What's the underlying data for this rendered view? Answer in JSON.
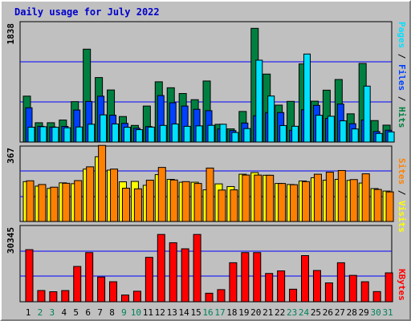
{
  "chart_data": [
    {
      "type": "bar",
      "title": "Daily usage for July 2022",
      "categories": [
        "1",
        "2",
        "3",
        "4",
        "5",
        "6",
        "7",
        "8",
        "9",
        "10",
        "11",
        "12",
        "13",
        "14",
        "15",
        "16",
        "17",
        "18",
        "19",
        "20",
        "21",
        "22",
        "23",
        "24",
        "25",
        "26",
        "27",
        "28",
        "29",
        "30",
        "31"
      ],
      "weekend_days": [
        "2",
        "3",
        "9",
        "10",
        "16",
        "17",
        "23",
        "24",
        "30",
        "31"
      ],
      "ymax_label": "1838",
      "ylim": [
        0,
        1838
      ],
      "legend": [
        "Pages",
        "Files",
        "Hits"
      ],
      "series": [
        {
          "name": "Hits",
          "color": "#008040",
          "values": [
            701,
            295,
            295,
            336,
            617,
            1418,
            985,
            795,
            390,
            254,
            550,
            920,
            829,
            741,
            647,
            932,
            271,
            201,
            467,
            1736,
            1038,
            564,
            621,
            1193,
            624,
            792,
            955,
            431,
            1200,
            328,
            258
          ]
        },
        {
          "name": "Files",
          "color": "#0040FF",
          "values": [
            523,
            240,
            230,
            239,
            489,
            620,
            700,
            410,
            285,
            210,
            236,
            710,
            600,
            550,
            500,
            479,
            200,
            175,
            290,
            402,
            450,
            450,
            180,
            493,
            560,
            360,
            580,
            280,
            336,
            160,
            180
          ]
        },
        {
          "name": "Pages",
          "color": "#00E0FF",
          "values": [
            227,
            234,
            225,
            218,
            230,
            272,
            415,
            276,
            226,
            189,
            228,
            254,
            276,
            240,
            247,
            255,
            272,
            146,
            206,
            1250,
            703,
            252,
            241,
            1344,
            409,
            394,
            324,
            200,
            854,
            131,
            155
          ]
        }
      ]
    },
    {
      "type": "bar",
      "ymax_label": "367",
      "ylim": [
        0,
        367
      ],
      "legend": [
        "Sites",
        "Visits"
      ],
      "series": [
        {
          "name": "Visits",
          "color": "#FFFF00",
          "values": [
            194,
            172,
            161,
            188,
            184,
            255,
            315,
            250,
            193,
            195,
            176,
            228,
            205,
            191,
            191,
            154,
            183,
            170,
            230,
            238,
            225,
            185,
            180,
            197,
            213,
            201,
            205,
            200,
            187,
            160,
            148
          ]
        },
        {
          "name": "Sites",
          "color": "#FF8000",
          "values": [
            198,
            180,
            167,
            186,
            199,
            266,
            370,
            255,
            162,
            159,
            201,
            263,
            202,
            194,
            185,
            260,
            153,
            154,
            226,
            226,
            225,
            185,
            179,
            194,
            230,
            240,
            248,
            204,
            232,
            156,
            144
          ]
        }
      ]
    },
    {
      "type": "bar",
      "ymax_label": "30345",
      "ylim": [
        0,
        30345
      ],
      "legend": [
        "KBytes"
      ],
      "series": [
        {
          "name": "KBytes",
          "color": "#FF0000",
          "values": [
            20733,
            4466,
            3986,
            4450,
            14046,
            19565,
            9838,
            7963,
            2678,
            4188,
            17679,
            26788,
            23489,
            21074,
            26788,
            3400,
            4828,
            15528,
            19565,
            19565,
            11262,
            12281,
            5000,
            18370,
            12440,
            7500,
            15528,
            10500,
            7963,
            4050,
            11500
          ]
        }
      ]
    }
  ]
}
